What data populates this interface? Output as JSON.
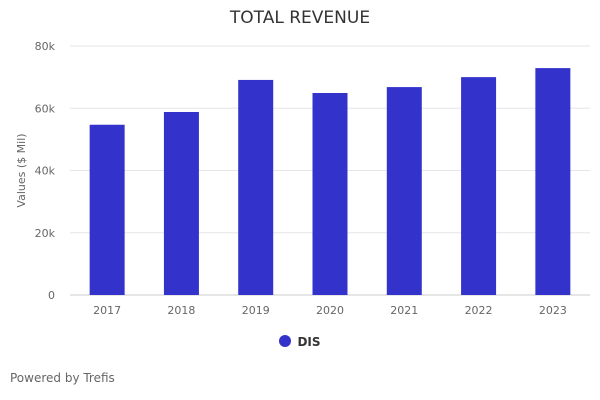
{
  "chart_data": {
    "type": "bar",
    "title": "TOTAL REVENUE",
    "xlabel": "",
    "ylabel": "Values ($ Mil)",
    "ylim": [
      0,
      80000
    ],
    "yticks": [
      0,
      20000,
      40000,
      60000,
      80000
    ],
    "ytick_labels": [
      "0",
      "20k",
      "40k",
      "60k",
      "80k"
    ],
    "grid": true,
    "categories": [
      "2017",
      "2018",
      "2019",
      "2020",
      "2021",
      "2022",
      "2023"
    ],
    "series": [
      {
        "name": "DIS",
        "color": "#3333cc",
        "values": [
          54700,
          58800,
          69100,
          64900,
          66800,
          70000,
          72900
        ]
      }
    ],
    "legend_position": "bottom-center"
  },
  "footer": {
    "credit": "Powered by Trefis"
  }
}
